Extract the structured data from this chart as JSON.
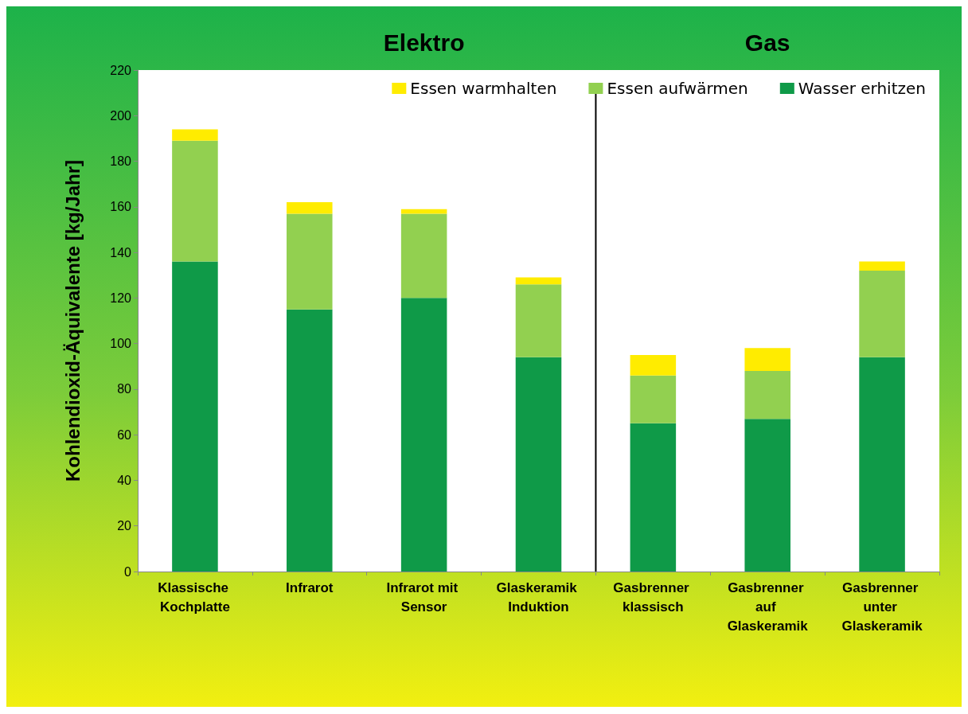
{
  "chart_data": {
    "type": "bar",
    "stacked": true,
    "ylabel": "Kohlendioxid-Äquivalente [kg/Jahr]",
    "annotations": [
      "Elektro",
      "Gas"
    ],
    "categories": [
      "Klassische Kochplatte",
      "Infrarot",
      "Infrarot mit Sensor",
      "Glaskeramik Induktion",
      "Gasbrenner klassisch",
      "Gasbrenner auf Glaskeramik",
      "Gasbrenner unter Glaskeramik"
    ],
    "series": [
      {
        "name": "Wasser erhitzen",
        "color": "#0f9a48",
        "values": [
          136,
          115,
          120,
          94,
          65,
          67,
          94
        ]
      },
      {
        "name": "Essen aufwärmen",
        "color": "#92d050",
        "values": [
          53,
          42,
          37,
          32,
          21,
          21,
          38
        ]
      },
      {
        "name": "Essen warmhalten",
        "color": "#ffec00",
        "values": [
          5,
          5,
          2,
          3,
          9,
          10,
          4
        ]
      }
    ],
    "ylim": [
      0,
      220
    ],
    "yticks": [
      0,
      20,
      40,
      60,
      80,
      100,
      120,
      140,
      160,
      180,
      200,
      220
    ],
    "grid": false,
    "legend": "top right"
  }
}
